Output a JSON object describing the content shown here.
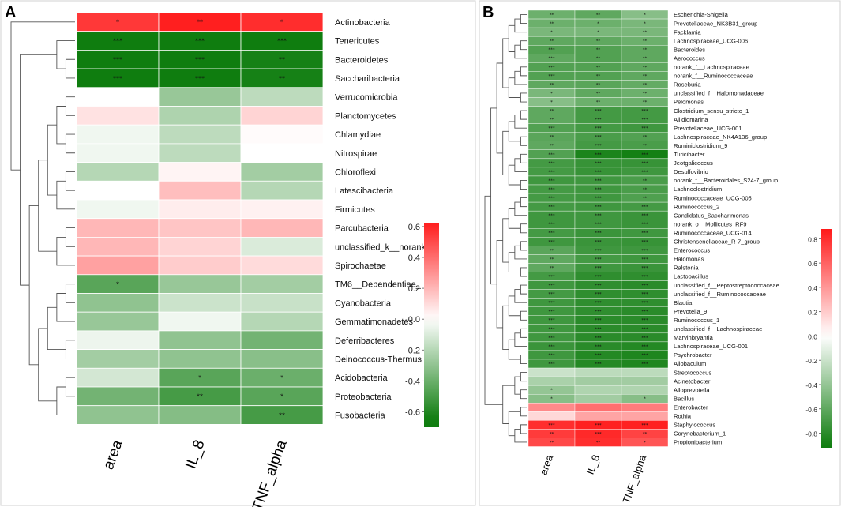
{
  "chart_data": [
    {
      "type": "heatmap",
      "panel": "A",
      "columns": [
        "area",
        "IL_8",
        "TNF_alpha"
      ],
      "rows": [
        "Actinobacteria",
        "Tenericutes",
        "Bacteroidetes",
        "Saccharibacteria",
        "Verrucomicrobia",
        "Planctomycetes",
        "Chlamydiae",
        "Nitrospirae",
        "Chloroflexi",
        "Latescibacteria",
        "Firmicutes",
        "Parcubacteria",
        "unclassified_k__norank",
        "Spirochaetae",
        "TM6__Dependentiae_",
        "Cyanobacteria",
        "Gemmatimonadetes",
        "Deferribacteres",
        "Deinococcus-Thermus",
        "Acidobacteria",
        "Proteobacteria",
        "Fusobacteria"
      ],
      "values": [
        [
          0.55,
          0.62,
          0.58
        ],
        [
          -0.65,
          -0.65,
          -0.65
        ],
        [
          -0.65,
          -0.65,
          -0.63
        ],
        [
          -0.65,
          -0.65,
          -0.63
        ],
        [
          0.0,
          -0.28,
          -0.18
        ],
        [
          0.08,
          -0.22,
          0.12
        ],
        [
          -0.04,
          -0.18,
          0.01
        ],
        [
          -0.04,
          -0.18,
          0.0
        ],
        [
          -0.2,
          0.03,
          -0.25
        ],
        [
          0.0,
          0.18,
          -0.2
        ],
        [
          -0.04,
          0.05,
          0.04
        ],
        [
          0.2,
          0.16,
          0.2
        ],
        [
          0.2,
          0.12,
          -0.1
        ],
        [
          0.26,
          0.14,
          0.1
        ],
        [
          -0.45,
          -0.28,
          -0.25
        ],
        [
          -0.3,
          -0.14,
          -0.15
        ],
        [
          -0.28,
          -0.04,
          -0.2
        ],
        [
          -0.05,
          -0.3,
          -0.38
        ],
        [
          -0.25,
          -0.3,
          -0.32
        ],
        [
          -0.12,
          -0.45,
          -0.4
        ],
        [
          -0.38,
          -0.5,
          -0.45
        ],
        [
          -0.3,
          -0.33,
          -0.5
        ]
      ],
      "significance": [
        [
          "*",
          "**",
          "*"
        ],
        [
          "***",
          "***",
          "***"
        ],
        [
          "***",
          "***",
          "**"
        ],
        [
          "***",
          "***",
          "**"
        ],
        [
          "",
          "",
          ""
        ],
        [
          "",
          "",
          ""
        ],
        [
          "",
          "",
          ""
        ],
        [
          "",
          "",
          ""
        ],
        [
          "",
          "",
          ""
        ],
        [
          "",
          "",
          ""
        ],
        [
          "",
          "",
          ""
        ],
        [
          "",
          "",
          ""
        ],
        [
          "",
          "",
          ""
        ],
        [
          "",
          "",
          ""
        ],
        [
          "*",
          "",
          ""
        ],
        [
          "",
          "",
          ""
        ],
        [
          "",
          "",
          ""
        ],
        [
          "",
          "",
          ""
        ],
        [
          "",
          "",
          ""
        ],
        [
          "",
          "*",
          "*"
        ],
        [
          "",
          "**",
          "*"
        ],
        [
          "",
          "",
          "**"
        ]
      ],
      "colorbar": {
        "ticks": [
          "0.6",
          "0.4",
          "0.2",
          "-0.0",
          "-0.2",
          "-0.4",
          "-0.6"
        ],
        "range": [
          -0.7,
          0.62
        ]
      }
    },
    {
      "type": "heatmap",
      "panel": "B",
      "columns": [
        "area",
        "IL_8",
        "TNF_alpha"
      ],
      "rows": [
        "Escherichia-Shigella",
        "Prevotellaceae_NK3B31_group",
        "Facklamia",
        "Lachnospiraceae_UCG-006",
        "Bacteroides",
        "Aerococcus",
        "norank_f__Lachnospiraceae",
        "norank_f__Ruminococcaceae",
        "Roseburia",
        "unclassified_f__Halomonadaceae",
        "Pelomonas",
        "Clostridium_sensu_stricto_1",
        "Aliidiomarina",
        "Prevotellaceae_UCG-001",
        "Lachnospiraceae_NK4A136_group",
        "Ruminiclostridium_9",
        "Turicibacter",
        "Jeotgalicoccus",
        "Desulfovibrio",
        "norank_f__Bacteroidales_S24-7_group",
        "Lachnoclostridium",
        "Ruminococcaceae_UCG-005",
        "Ruminococcus_2",
        "Candidatus_Saccharimonas",
        "norank_o__Mollicutes_RF9",
        "Ruminococcaceae_UCG-014",
        "Christensenellaceae_R-7_group",
        "Enterococcus",
        "Halomonas",
        "Ralstonia",
        "Lactobacillus",
        "unclassified_f__Peptostreptococcaceae",
        "unclassified_f__Ruminococcaceae",
        "Blautia",
        "Prevotella_9",
        "Ruminococcus_1",
        "unclassified_f__Lachnospiraceae",
        "Marvinbryantia",
        "Lachnospiraceae_UCG-001",
        "Psychrobacter",
        "Allobaculum",
        "Streptococcus",
        "Acinetobacter",
        "Alloprevotella",
        "Bacillus",
        "Enterobacter",
        "Rothia",
        "Staphylococcus",
        "Corynebacterium_1",
        "Propionibacterium"
      ],
      "values": [
        [
          -0.55,
          -0.6,
          -0.45
        ],
        [
          -0.55,
          -0.55,
          -0.5
        ],
        [
          -0.5,
          -0.5,
          -0.5
        ],
        [
          -0.6,
          -0.6,
          -0.55
        ],
        [
          -0.65,
          -0.65,
          -0.6
        ],
        [
          -0.6,
          -0.65,
          -0.6
        ],
        [
          -0.65,
          -0.65,
          -0.6
        ],
        [
          -0.65,
          -0.65,
          -0.6
        ],
        [
          -0.6,
          -0.62,
          -0.58
        ],
        [
          -0.5,
          -0.6,
          -0.55
        ],
        [
          -0.45,
          -0.55,
          -0.55
        ],
        [
          -0.6,
          -0.7,
          -0.7
        ],
        [
          -0.6,
          -0.7,
          -0.7
        ],
        [
          -0.65,
          -0.7,
          -0.72
        ],
        [
          -0.62,
          -0.68,
          -0.65
        ],
        [
          -0.6,
          -0.7,
          -0.68
        ],
        [
          -0.65,
          -0.85,
          -0.88
        ],
        [
          -0.7,
          -0.75,
          -0.75
        ],
        [
          -0.7,
          -0.75,
          -0.72
        ],
        [
          -0.72,
          -0.72,
          -0.68
        ],
        [
          -0.7,
          -0.72,
          -0.68
        ],
        [
          -0.7,
          -0.72,
          -0.66
        ],
        [
          -0.7,
          -0.72,
          -0.7
        ],
        [
          -0.72,
          -0.72,
          -0.74
        ],
        [
          -0.72,
          -0.72,
          -0.74
        ],
        [
          -0.7,
          -0.74,
          -0.72
        ],
        [
          -0.72,
          -0.74,
          -0.75
        ],
        [
          -0.62,
          -0.72,
          -0.72
        ],
        [
          -0.6,
          -0.7,
          -0.72
        ],
        [
          -0.6,
          -0.72,
          -0.74
        ],
        [
          -0.7,
          -0.78,
          -0.78
        ],
        [
          -0.72,
          -0.78,
          -0.8
        ],
        [
          -0.7,
          -0.78,
          -0.78
        ],
        [
          -0.72,
          -0.78,
          -0.78
        ],
        [
          -0.72,
          -0.78,
          -0.8
        ],
        [
          -0.72,
          -0.8,
          -0.8
        ],
        [
          -0.72,
          -0.8,
          -0.8
        ],
        [
          -0.72,
          -0.8,
          -0.8
        ],
        [
          -0.74,
          -0.8,
          -0.82
        ],
        [
          -0.72,
          -0.82,
          -0.84
        ],
        [
          -0.72,
          -0.82,
          -0.84
        ],
        [
          -0.2,
          -0.25,
          -0.25
        ],
        [
          -0.32,
          -0.35,
          -0.35
        ],
        [
          -0.4,
          -0.3,
          -0.3
        ],
        [
          -0.45,
          -0.35,
          -0.45
        ],
        [
          0.45,
          0.55,
          0.5
        ],
        [
          0.15,
          0.35,
          0.35
        ],
        [
          0.8,
          0.85,
          0.85
        ],
        [
          0.75,
          0.82,
          0.72
        ],
        [
          0.7,
          0.8,
          0.65
        ]
      ],
      "significance": [
        [
          "**",
          "**",
          "*"
        ],
        [
          "**",
          "*",
          "*"
        ],
        [
          "*",
          "*",
          "**"
        ],
        [
          "**",
          "**",
          "**"
        ],
        [
          "***",
          "**",
          "**"
        ],
        [
          "***",
          "**",
          "**"
        ],
        [
          "***",
          "**",
          "**"
        ],
        [
          "***",
          "**",
          "**"
        ],
        [
          "**",
          "**",
          "**"
        ],
        [
          "*",
          "**",
          "**"
        ],
        [
          "*",
          "**",
          "**"
        ],
        [
          "**",
          "***",
          "***"
        ],
        [
          "**",
          "***",
          "***"
        ],
        [
          "***",
          "***",
          "***"
        ],
        [
          "**",
          "***",
          "**"
        ],
        [
          "**",
          "***",
          "**"
        ],
        [
          "***",
          "***",
          "***"
        ],
        [
          "***",
          "***",
          "***"
        ],
        [
          "***",
          "***",
          "***"
        ],
        [
          "***",
          "***",
          "**"
        ],
        [
          "***",
          "***",
          "**"
        ],
        [
          "***",
          "***",
          "**"
        ],
        [
          "***",
          "***",
          "***"
        ],
        [
          "***",
          "***",
          "***"
        ],
        [
          "***",
          "***",
          "***"
        ],
        [
          "***",
          "***",
          "***"
        ],
        [
          "***",
          "***",
          "***"
        ],
        [
          "**",
          "***",
          "***"
        ],
        [
          "**",
          "***",
          "***"
        ],
        [
          "**",
          "***",
          "***"
        ],
        [
          "***",
          "***",
          "***"
        ],
        [
          "***",
          "***",
          "***"
        ],
        [
          "***",
          "***",
          "***"
        ],
        [
          "***",
          "***",
          "***"
        ],
        [
          "***",
          "***",
          "***"
        ],
        [
          "***",
          "***",
          "***"
        ],
        [
          "***",
          "***",
          "***"
        ],
        [
          "***",
          "***",
          "***"
        ],
        [
          "***",
          "***",
          "***"
        ],
        [
          "***",
          "***",
          "***"
        ],
        [
          "***",
          "***",
          "***"
        ],
        [
          "",
          "",
          ""
        ],
        [
          "",
          "",
          ""
        ],
        [
          "*",
          "",
          ""
        ],
        [
          "*",
          "",
          "*"
        ],
        [
          "",
          "",
          ""
        ],
        [
          "",
          "",
          ""
        ],
        [
          "***",
          "***",
          "***"
        ],
        [
          "**",
          "***",
          "**"
        ],
        [
          "**",
          "**",
          "*"
        ]
      ],
      "colorbar": {
        "ticks": [
          "0.8",
          "0.6",
          "0.4",
          "0.2",
          "0.0",
          "-0.2",
          "-0.4",
          "-0.6",
          "-0.8"
        ],
        "range": [
          -0.92,
          0.88
        ]
      }
    }
  ]
}
